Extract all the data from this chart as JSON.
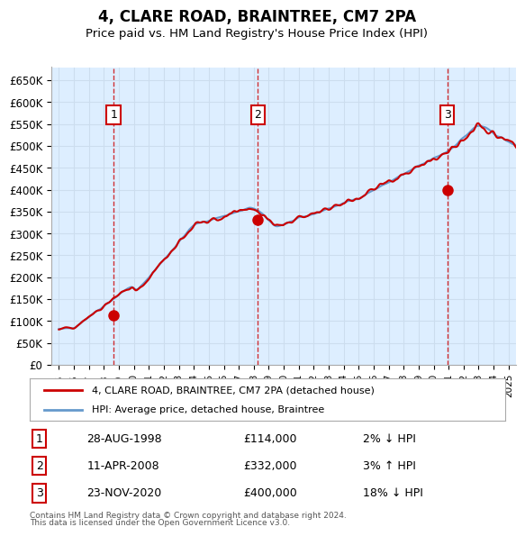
{
  "title": "4, CLARE ROAD, BRAINTREE, CM7 2PA",
  "subtitle": "Price paid vs. HM Land Registry's House Price Index (HPI)",
  "ylabel_ticks": [
    "£0",
    "£50K",
    "£100K",
    "£150K",
    "£200K",
    "£250K",
    "£300K",
    "£350K",
    "£400K",
    "£450K",
    "£500K",
    "£550K",
    "£600K",
    "£650K"
  ],
  "ylim": [
    0,
    680000
  ],
  "ytick_values": [
    0,
    50000,
    100000,
    150000,
    200000,
    250000,
    300000,
    350000,
    400000,
    450000,
    500000,
    550000,
    600000,
    650000
  ],
  "hpi_color": "#6699cc",
  "price_color": "#cc0000",
  "sale_marker_color": "#cc0000",
  "grid_color": "#ccddee",
  "bg_color": "#ddeeff",
  "purchases": [
    {
      "label": "1",
      "date_x": 1998.65,
      "price": 114000,
      "date_str": "28-AUG-1998",
      "amount": "£114,000",
      "hpi_rel": "2% ↓ HPI"
    },
    {
      "label": "2",
      "date_x": 2008.27,
      "price": 332000,
      "date_str": "11-APR-2008",
      "amount": "£332,000",
      "hpi_rel": "3% ↑ HPI"
    },
    {
      "label": "3",
      "date_x": 2020.9,
      "price": 400000,
      "date_str": "23-NOV-2020",
      "amount": "£400,000",
      "hpi_rel": "18% ↓ HPI"
    }
  ],
  "legend_line1": "4, CLARE ROAD, BRAINTREE, CM7 2PA (detached house)",
  "legend_line2": "HPI: Average price, detached house, Braintree",
  "footer1": "Contains HM Land Registry data © Crown copyright and database right 2024.",
  "footer2": "This data is licensed under the Open Government Licence v3.0.",
  "xlim_start": 1994.5,
  "xlim_end": 2025.5
}
